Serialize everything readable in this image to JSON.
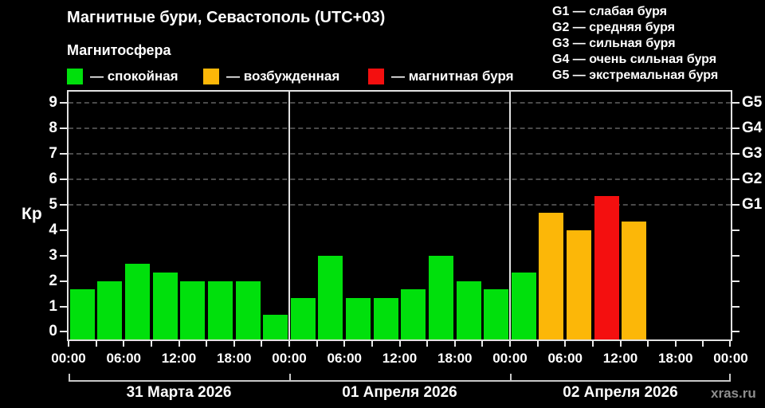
{
  "header": {
    "title": "Магнитные бури, Севастополь (UTC+03)",
    "subtitle": "Магнитосфера"
  },
  "legend": {
    "items": [
      {
        "name": "quiet",
        "label": "— спокойная",
        "color": "#00e00c"
      },
      {
        "name": "excited",
        "label": "— возбужденная",
        "color": "#fcb708"
      },
      {
        "name": "storm",
        "label": "— магнитная буря",
        "color": "#f40f0f"
      }
    ]
  },
  "g_scale": {
    "items": [
      "G1 — слабая буря",
      "G2 — средняя буря",
      "G3 — сильная буря",
      "G4 — очень сильная буря",
      "G5 — экстремальная буря"
    ]
  },
  "watermark": "xras.ru",
  "chart_data": {
    "type": "bar",
    "title": "Магнитные бури, Севастополь (UTC+03)",
    "ylabel": "Кр",
    "ylim": [
      0,
      9
    ],
    "yticks": [
      0,
      1,
      2,
      3,
      4,
      5,
      6,
      7,
      8,
      9
    ],
    "gridline_values": [
      5,
      6,
      7,
      8,
      9
    ],
    "grid": "dashed horizontal lines at storm levels only",
    "legend_position": "top-left",
    "right_axis": [
      {
        "value": 5,
        "label": "G1"
      },
      {
        "value": 6,
        "label": "G2"
      },
      {
        "value": 7,
        "label": "G3"
      },
      {
        "value": 8,
        "label": "G4"
      },
      {
        "value": 9,
        "label": "G5"
      }
    ],
    "x_tick_labels": [
      "00:00",
      "06:00",
      "12:00",
      "18:00",
      "00:00",
      "06:00",
      "12:00",
      "18:00",
      "00:00",
      "06:00",
      "12:00",
      "18:00",
      "00:00"
    ],
    "hours_per_bar": 3,
    "bars_per_day": 8,
    "colors": {
      "quiet": "#00e00c",
      "excited": "#fcb708",
      "storm": "#f40f0f"
    },
    "days": [
      {
        "date": "31 Марта 2026",
        "bars": [
          {
            "kp": 1.67,
            "category": "quiet"
          },
          {
            "kp": 2.0,
            "category": "quiet"
          },
          {
            "kp": 2.67,
            "category": "quiet"
          },
          {
            "kp": 2.33,
            "category": "quiet"
          },
          {
            "kp": 2.0,
            "category": "quiet"
          },
          {
            "kp": 2.0,
            "category": "quiet"
          },
          {
            "kp": 2.0,
            "category": "quiet"
          },
          {
            "kp": 0.67,
            "category": "quiet"
          }
        ]
      },
      {
        "date": "01 Апреля 2026",
        "bars": [
          {
            "kp": 1.33,
            "category": "quiet"
          },
          {
            "kp": 3.0,
            "category": "quiet"
          },
          {
            "kp": 1.33,
            "category": "quiet"
          },
          {
            "kp": 1.33,
            "category": "quiet"
          },
          {
            "kp": 1.67,
            "category": "quiet"
          },
          {
            "kp": 3.0,
            "category": "quiet"
          },
          {
            "kp": 2.0,
            "category": "quiet"
          },
          {
            "kp": 1.67,
            "category": "quiet"
          }
        ]
      },
      {
        "date": "02 Апреля 2026",
        "bars": [
          {
            "kp": 2.33,
            "category": "quiet"
          },
          {
            "kp": 4.67,
            "category": "excited"
          },
          {
            "kp": 4.0,
            "category": "excited"
          },
          {
            "kp": 5.33,
            "category": "storm"
          },
          {
            "kp": 4.33,
            "category": "excited"
          }
        ]
      }
    ]
  }
}
